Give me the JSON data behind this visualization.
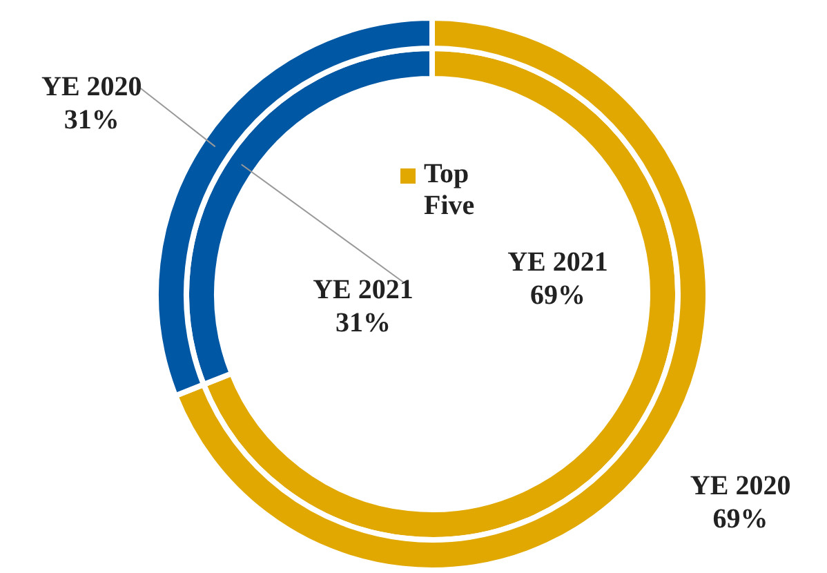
{
  "chart_data": {
    "type": "donut",
    "categories": [
      "Top Five",
      null
    ],
    "colors": [
      "#e0a800",
      "#0057a3"
    ],
    "series": [
      {
        "name": "YE 2020",
        "values": [
          69,
          31
        ],
        "value_labels": [
          "69%",
          "31%"
        ]
      },
      {
        "name": "YE 2021",
        "values": [
          69,
          31
        ],
        "value_labels": [
          "69%",
          "31%"
        ]
      }
    ],
    "legend": "center"
  }
}
